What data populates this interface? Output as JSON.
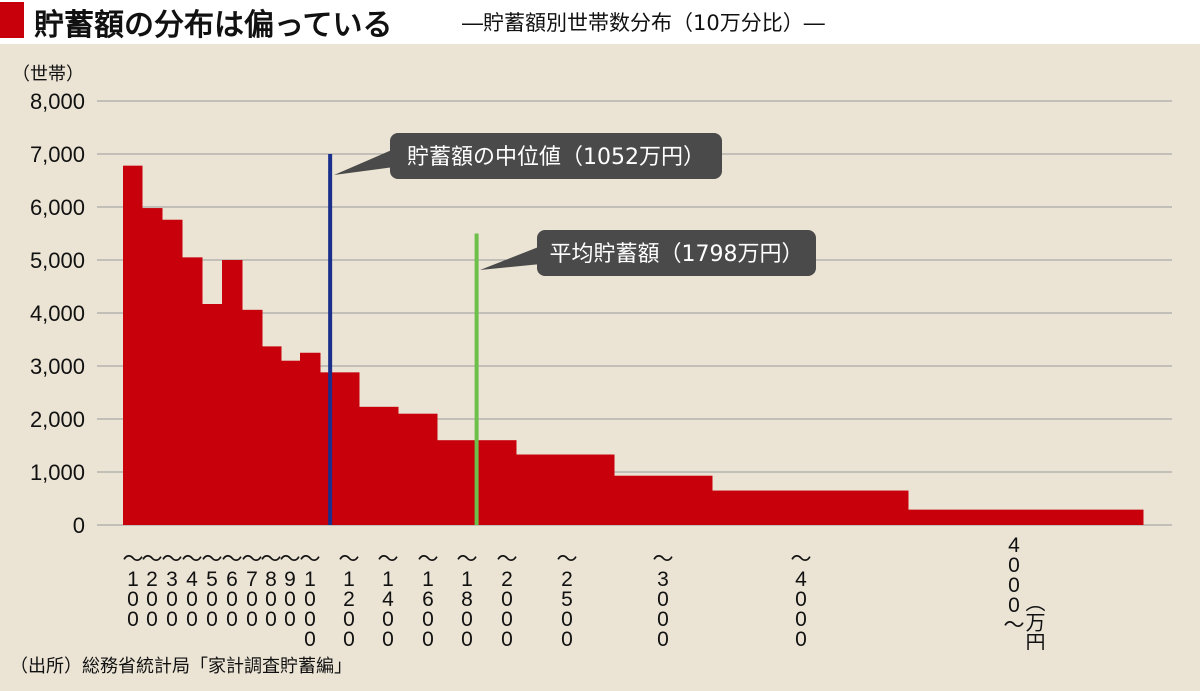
{
  "header": {
    "title": "貯蓄額の分布は偏っている",
    "subtitle": "―貯蓄額別世帯数分布（10万分比）―"
  },
  "source": "（出所）総務省統計局「家計調査貯蓄編」",
  "chart_data": {
    "type": "bar",
    "ylabel": "（世帯）",
    "xunit": "（万円）",
    "ylim": [
      0,
      8000
    ],
    "yticks": [
      "0",
      "1,000",
      "2,000",
      "3,000",
      "4,000",
      "5,000",
      "6,000",
      "7,000",
      "8,000"
    ],
    "grid": true,
    "color": "#c8000b",
    "bins": [
      {
        "from": 0,
        "to": 100,
        "value": 6780
      },
      {
        "from": 100,
        "to": 200,
        "value": 5980
      },
      {
        "from": 200,
        "to": 300,
        "value": 5760
      },
      {
        "from": 300,
        "to": 400,
        "value": 5050
      },
      {
        "from": 400,
        "to": 500,
        "value": 4170
      },
      {
        "from": 500,
        "to": 600,
        "value": 5000
      },
      {
        "from": 600,
        "to": 700,
        "value": 4060
      },
      {
        "from": 700,
        "to": 800,
        "value": 3370
      },
      {
        "from": 800,
        "to": 900,
        "value": 3100
      },
      {
        "from": 900,
        "to": 1000,
        "value": 3250
      },
      {
        "from": 1000,
        "to": 1200,
        "value": 2880
      },
      {
        "from": 1200,
        "to": 1400,
        "value": 2230
      },
      {
        "from": 1400,
        "to": 1600,
        "value": 2100
      },
      {
        "from": 1600,
        "to": 1800,
        "value": 1600
      },
      {
        "from": 1800,
        "to": 2000,
        "value": 1600
      },
      {
        "from": 2000,
        "to": 2500,
        "value": 1330
      },
      {
        "from": 2500,
        "to": 3000,
        "value": 930
      },
      {
        "from": 3000,
        "to": 4000,
        "value": 650
      },
      {
        "from": 4000,
        "to": null,
        "value": 290
      }
    ],
    "tick_labels": [
      "100",
      "200",
      "300",
      "400",
      "500",
      "600",
      "700",
      "800",
      "900",
      "1000",
      "1200",
      "1400",
      "1600",
      "1800",
      "2000",
      "2500",
      "3000",
      "4000",
      "4000"
    ],
    "annotations": [
      {
        "text": "貯蓄額の中位値（1052万円）",
        "x": 1052,
        "y_top": 7000,
        "line_color": "#1a2f8c"
      },
      {
        "text": "平均貯蓄額（1798万円）",
        "x": 1798,
        "y_top": 5500,
        "line_color": "#6cc04a"
      }
    ]
  }
}
